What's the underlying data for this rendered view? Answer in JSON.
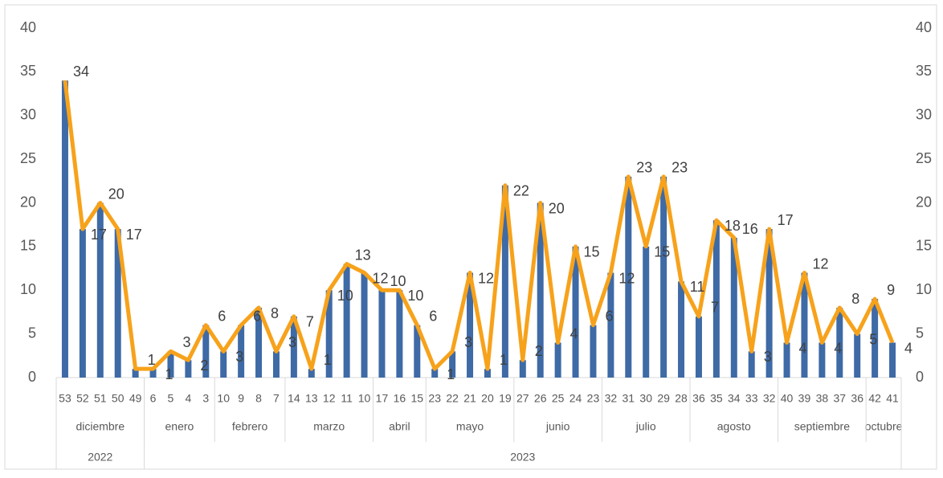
{
  "chart_data": {
    "type": "bar_line",
    "categories": [
      "53",
      "52",
      "51",
      "50",
      "49",
      "6",
      "5",
      "4",
      "3",
      "10",
      "9",
      "8",
      "7",
      "14",
      "13",
      "12",
      "11",
      "10",
      "17",
      "16",
      "15",
      "23",
      "22",
      "21",
      "20",
      "19",
      "27",
      "26",
      "25",
      "24",
      "23",
      "32",
      "31",
      "30",
      "29",
      "28",
      "36",
      "35",
      "34",
      "33",
      "32",
      "40",
      "39",
      "38",
      "37",
      "36",
      "42",
      "41"
    ],
    "months": [
      "diciembre",
      null,
      null,
      null,
      null,
      "enero",
      null,
      null,
      null,
      "febrero",
      null,
      null,
      null,
      "marzo",
      null,
      null,
      null,
      null,
      "abril",
      null,
      null,
      "mayo",
      null,
      null,
      null,
      null,
      "junio",
      null,
      null,
      null,
      null,
      "julio",
      null,
      null,
      null,
      null,
      "agosto",
      null,
      null,
      null,
      null,
      "septiembre",
      null,
      null,
      null,
      null,
      "octubre",
      null
    ],
    "years": [
      "2022",
      null,
      null,
      null,
      null,
      "2023",
      null,
      null,
      null,
      null,
      null,
      null,
      null,
      null,
      null,
      null,
      null,
      null,
      null,
      null,
      null,
      null,
      null,
      null,
      null,
      null,
      null,
      null,
      null,
      null,
      null,
      null,
      null,
      null,
      null,
      null,
      null,
      null,
      null,
      null,
      null,
      null,
      null,
      null,
      null,
      null,
      null,
      null
    ],
    "values": [
      34,
      17,
      20,
      17,
      1,
      1,
      3,
      2,
      6,
      3,
      6,
      8,
      3,
      7,
      1,
      10,
      13,
      12,
      10,
      10,
      6,
      1,
      3,
      12,
      1,
      22,
      2,
      20,
      4,
      15,
      6,
      12,
      23,
      15,
      23,
      11,
      7,
      18,
      16,
      3,
      17,
      4,
      12,
      4,
      8,
      5,
      9,
      4
    ],
    "bar_color": "#3e6aa6",
    "line_color": "#f7a21b",
    "ylim": [
      0,
      40
    ],
    "yticks": [
      0,
      5,
      10,
      15,
      20,
      25,
      30,
      35,
      40
    ],
    "y2lim": [
      0,
      40
    ],
    "y2ticks": [
      0,
      5,
      10,
      15,
      20,
      25,
      30,
      35,
      40
    ]
  }
}
